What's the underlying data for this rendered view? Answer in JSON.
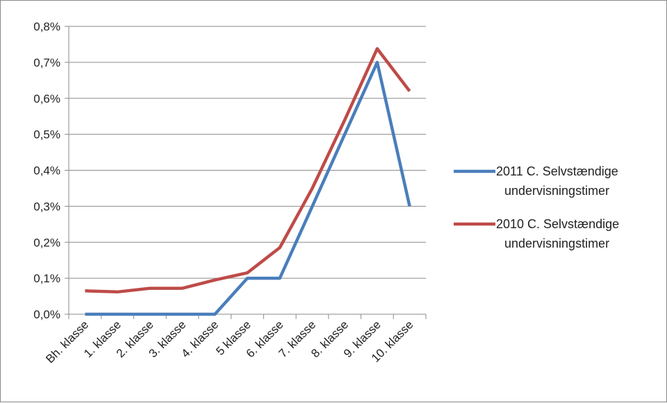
{
  "chart_data": {
    "type": "line",
    "categories": [
      "Bh. klasse",
      "1. klasse",
      "2. klasse",
      "3. klasse",
      "4. klasse",
      "5 klasse",
      "6. klasse",
      "7. klasse",
      "8. klasse",
      "9. klasse",
      "10. klasse"
    ],
    "series": [
      {
        "name": "2011 C. Selvstændige undervisningstimer",
        "name_lines": [
          "2011 C. Selvstændige",
          "undervisningstimer"
        ],
        "color": "#4a7ebb",
        "values": [
          0.0,
          0.0,
          0.0,
          0.0,
          0.0,
          0.1,
          0.1,
          0.3,
          0.5,
          0.7,
          0.3
        ]
      },
      {
        "name": "2010 C. Selvstændige undervisningstimer",
        "name_lines": [
          "2010 C. Selvstændige",
          "undervisningstimer"
        ],
        "color": "#be4b48",
        "values": [
          0.065,
          0.062,
          0.072,
          0.072,
          0.095,
          0.115,
          0.185,
          0.35,
          0.54,
          0.738,
          0.62
        ]
      }
    ],
    "ylim": [
      0,
      0.8
    ],
    "y_ticks": [
      "0,0%",
      "0,1%",
      "0,2%",
      "0,3%",
      "0,4%",
      "0,5%",
      "0,6%",
      "0,7%",
      "0,8%"
    ],
    "grid": true,
    "legend": "right",
    "title": "",
    "xlabel": "",
    "ylabel": ""
  }
}
